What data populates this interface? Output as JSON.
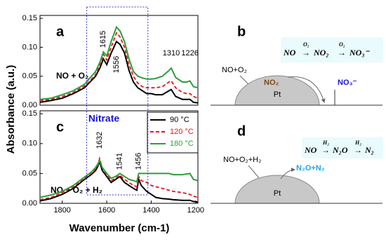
{
  "figure": {
    "ylabel": "Absorbance (a.u.)",
    "xlabel": "Wavenumber (cm-1)",
    "note": "Nitrate"
  },
  "chart_data": [
    {
      "type": "line",
      "panel": "a",
      "label": "NO + O₂",
      "x": [
        1900,
        1850,
        1800,
        1750,
        1700,
        1680,
        1650,
        1630,
        1615,
        1600,
        1580,
        1556,
        1540,
        1520,
        1500,
        1480,
        1460,
        1440,
        1420,
        1400,
        1380,
        1350,
        1320,
        1310,
        1290,
        1260,
        1240,
        1226,
        1210,
        1190
      ],
      "series": [
        {
          "name": "90 °C",
          "color": "#000000",
          "dash": false,
          "values": [
            0.005,
            0.008,
            0.012,
            0.02,
            0.03,
            0.038,
            0.05,
            0.065,
            0.08,
            0.07,
            0.09,
            0.11,
            0.105,
            0.09,
            0.06,
            0.04,
            0.03,
            0.025,
            0.02,
            0.02,
            0.018,
            0.018,
            0.025,
            0.027,
            0.015,
            0.01,
            0.01,
            0.01,
            0.005,
            0.004
          ]
        },
        {
          "name": "120 °C",
          "color": "#e8151b",
          "dash": true,
          "values": [
            0.008,
            0.01,
            0.015,
            0.022,
            0.033,
            0.04,
            0.053,
            0.07,
            0.088,
            0.078,
            0.1,
            0.125,
            0.118,
            0.1,
            0.07,
            0.05,
            0.038,
            0.032,
            0.03,
            0.03,
            0.03,
            0.032,
            0.04,
            0.042,
            0.03,
            0.022,
            0.02,
            0.02,
            0.015,
            0.012
          ]
        },
        {
          "name": "180 °C",
          "color": "#2e9e3a",
          "dash": false,
          "values": [
            0.01,
            0.012,
            0.018,
            0.025,
            0.036,
            0.045,
            0.058,
            0.075,
            0.092,
            0.085,
            0.11,
            0.135,
            0.128,
            0.11,
            0.08,
            0.058,
            0.05,
            0.047,
            0.045,
            0.045,
            0.046,
            0.05,
            0.06,
            0.064,
            0.048,
            0.04,
            0.04,
            0.042,
            0.032,
            0.03
          ]
        }
      ],
      "peak_labels": [
        1615,
        1556,
        1310,
        1226
      ],
      "xlim": [
        1900,
        1190
      ],
      "ylim": [
        0,
        0.155
      ],
      "yticks": [
        {
          "value": 0,
          "label": "0.00"
        },
        {
          "value": 0.05,
          "label": "0.05"
        },
        {
          "value": 0.1,
          "label": "0.10"
        },
        {
          "value": 0.15,
          "label": "0.15"
        }
      ]
    },
    {
      "type": "line",
      "panel": "c",
      "label": "NO + O₂ + H₂",
      "legend": true,
      "x": [
        1900,
        1850,
        1800,
        1750,
        1700,
        1670,
        1650,
        1640,
        1632,
        1620,
        1600,
        1580,
        1560,
        1541,
        1520,
        1500,
        1480,
        1465,
        1456,
        1445,
        1420,
        1400,
        1380,
        1350,
        1320,
        1300,
        1260,
        1226,
        1210,
        1190
      ],
      "series": [
        {
          "name": "90 °C",
          "color": "#000000",
          "dash": false,
          "values": [
            0.004,
            0.008,
            0.015,
            0.025,
            0.04,
            0.048,
            0.055,
            0.062,
            0.07,
            0.055,
            0.045,
            0.035,
            0.04,
            0.045,
            0.035,
            0.03,
            0.025,
            0.022,
            0.04,
            0.03,
            0.02,
            0.015,
            0.01,
            0.008,
            0.007,
            0.006,
            0.005,
            0.005,
            0.003,
            0.002
          ]
        },
        {
          "name": "120 °C",
          "color": "#e8151b",
          "dash": true,
          "values": [
            0.006,
            0.01,
            0.018,
            0.028,
            0.042,
            0.05,
            0.058,
            0.064,
            0.075,
            0.06,
            0.048,
            0.038,
            0.042,
            0.047,
            0.04,
            0.035,
            0.03,
            0.028,
            0.045,
            0.038,
            0.035,
            0.03,
            0.028,
            0.025,
            0.022,
            0.02,
            0.018,
            0.015,
            0.012,
            0.01
          ]
        },
        {
          "name": "180 °C",
          "color": "#2e9e3a",
          "dash": false,
          "values": [
            0.01,
            0.014,
            0.02,
            0.03,
            0.044,
            0.052,
            0.06,
            0.066,
            0.072,
            0.06,
            0.05,
            0.042,
            0.045,
            0.05,
            0.045,
            0.04,
            0.038,
            0.036,
            0.05,
            0.05,
            0.05,
            0.05,
            0.05,
            0.05,
            0.05,
            0.048,
            0.048,
            0.05,
            0.04,
            0.038
          ]
        }
      ],
      "peak_labels": [
        1632,
        1541,
        1456
      ],
      "xlim": [
        1900,
        1190
      ],
      "ylim": [
        0,
        0.155
      ],
      "xticks": [
        1800,
        1600,
        1400,
        1200
      ],
      "yticks": [
        {
          "value": 0,
          "label": "0.00"
        },
        {
          "value": 0.05,
          "label": "0.05"
        },
        {
          "value": 0.1,
          "label": "0.10"
        },
        {
          "value": 0.15,
          "label": "0.15"
        }
      ]
    }
  ],
  "diagrams": [
    {
      "panel": "b",
      "reactant": "NO+O₂",
      "product": "NO₂",
      "product2": "NO₃⁻",
      "catalyst": "Pt",
      "equation": [
        "NO",
        "NO₂",
        "NO₃⁻"
      ],
      "arrow_label": "O₂"
    },
    {
      "panel": "d",
      "reactant": "NO+O₂+H₂",
      "product": "N₂O+N₂",
      "catalyst": "Pt",
      "equation": [
        "NO",
        "N₂O",
        "N₂"
      ],
      "arrow_label": "H₂"
    }
  ]
}
